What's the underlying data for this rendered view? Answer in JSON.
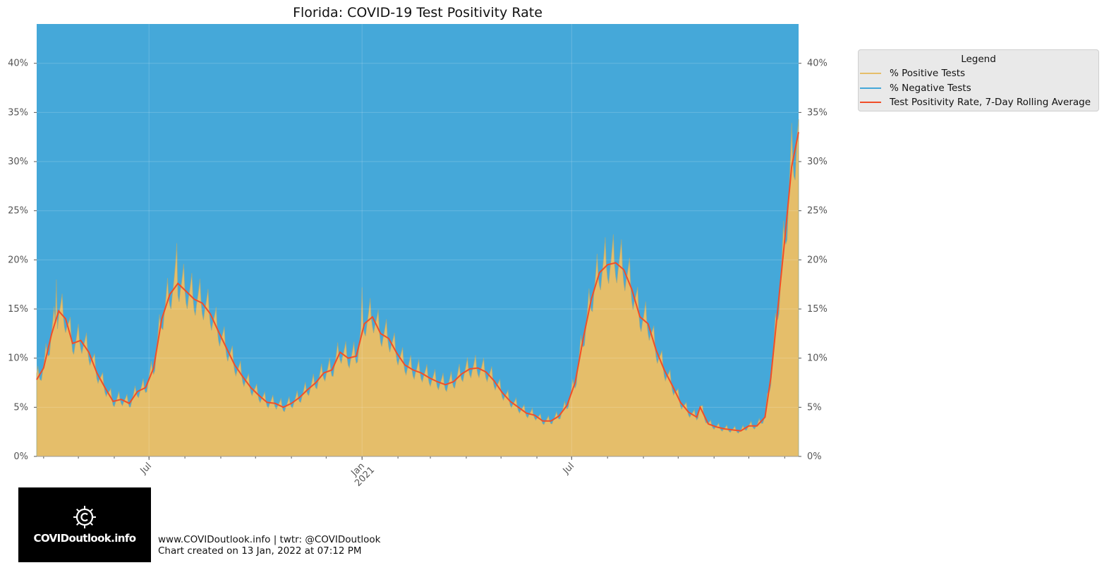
{
  "chart_data": {
    "type": "area",
    "title": "Florida: COVID-19 Test Positivity Rate",
    "xlabel": "",
    "ylabel": "",
    "x_ticks": [
      {
        "date": "2020-07-01",
        "label": "Jul"
      },
      {
        "date": "2021-01-01",
        "label": "Jan\n2021"
      },
      {
        "date": "2021-07-01",
        "label": "Jul"
      }
    ],
    "x_range": [
      "2020-03-26",
      "2022-01-13"
    ],
    "y_ticks": [
      "0%",
      "5%",
      "10%",
      "15%",
      "20%",
      "25%",
      "30%",
      "35%",
      "40%"
    ],
    "ylim": [
      0,
      44
    ],
    "grid": true,
    "legend_title": "Legend",
    "legend_position": "outside-right",
    "series": [
      {
        "name": "% Positive Tests",
        "color": "#E5BE6A"
      },
      {
        "name": "% Negative Tests",
        "color": "#45A8D9"
      },
      {
        "name": "Test Positivity Rate, 7-Day Rolling Average",
        "color": "#F14E28",
        "points": [
          [
            "2020-03-26",
            7.8
          ],
          [
            "2020-04-01",
            9.0
          ],
          [
            "2020-04-08",
            12.5
          ],
          [
            "2020-04-14",
            14.8
          ],
          [
            "2020-04-20",
            14.0
          ],
          [
            "2020-04-26",
            11.5
          ],
          [
            "2020-05-03",
            11.8
          ],
          [
            "2020-05-10",
            10.6
          ],
          [
            "2020-05-17",
            8.5
          ],
          [
            "2020-05-24",
            7.0
          ],
          [
            "2020-05-31",
            5.6
          ],
          [
            "2020-06-07",
            5.8
          ],
          [
            "2020-06-14",
            5.4
          ],
          [
            "2020-06-21",
            6.6
          ],
          [
            "2020-06-28",
            7.0
          ],
          [
            "2020-07-05",
            9.0
          ],
          [
            "2020-07-12",
            14.0
          ],
          [
            "2020-07-19",
            16.5
          ],
          [
            "2020-07-26",
            17.6
          ],
          [
            "2020-08-02",
            16.8
          ],
          [
            "2020-08-09",
            16.0
          ],
          [
            "2020-08-16",
            15.6
          ],
          [
            "2020-08-23",
            14.5
          ],
          [
            "2020-08-30",
            12.7
          ],
          [
            "2020-09-06",
            11.0
          ],
          [
            "2020-09-13",
            9.3
          ],
          [
            "2020-09-20",
            8.1
          ],
          [
            "2020-09-27",
            7.0
          ],
          [
            "2020-10-04",
            6.2
          ],
          [
            "2020-10-11",
            5.5
          ],
          [
            "2020-10-18",
            5.4
          ],
          [
            "2020-10-25",
            5.0
          ],
          [
            "2020-11-01",
            5.4
          ],
          [
            "2020-11-08",
            6.0
          ],
          [
            "2020-11-15",
            6.8
          ],
          [
            "2020-11-22",
            7.5
          ],
          [
            "2020-11-29",
            8.5
          ],
          [
            "2020-12-06",
            8.8
          ],
          [
            "2020-12-13",
            10.6
          ],
          [
            "2020-12-20",
            10.0
          ],
          [
            "2020-12-27",
            10.2
          ],
          [
            "2021-01-03",
            13.5
          ],
          [
            "2021-01-10",
            14.2
          ],
          [
            "2021-01-17",
            12.5
          ],
          [
            "2021-01-24",
            12.0
          ],
          [
            "2021-01-31",
            10.5
          ],
          [
            "2021-02-07",
            9.3
          ],
          [
            "2021-02-14",
            8.8
          ],
          [
            "2021-02-21",
            8.5
          ],
          [
            "2021-02-28",
            8.0
          ],
          [
            "2021-03-07",
            7.6
          ],
          [
            "2021-03-14",
            7.3
          ],
          [
            "2021-03-21",
            7.6
          ],
          [
            "2021-03-28",
            8.4
          ],
          [
            "2021-04-04",
            8.9
          ],
          [
            "2021-04-11",
            9.0
          ],
          [
            "2021-04-18",
            8.6
          ],
          [
            "2021-04-25",
            7.7
          ],
          [
            "2021-05-02",
            6.5
          ],
          [
            "2021-05-09",
            5.6
          ],
          [
            "2021-05-16",
            5.0
          ],
          [
            "2021-05-23",
            4.4
          ],
          [
            "2021-05-30",
            4.2
          ],
          [
            "2021-06-06",
            3.6
          ],
          [
            "2021-06-13",
            3.6
          ],
          [
            "2021-06-20",
            4.1
          ],
          [
            "2021-06-27",
            5.2
          ],
          [
            "2021-07-04",
            7.5
          ],
          [
            "2021-07-11",
            12.0
          ],
          [
            "2021-07-18",
            16.0
          ],
          [
            "2021-07-25",
            18.7
          ],
          [
            "2021-08-01",
            19.5
          ],
          [
            "2021-08-08",
            19.7
          ],
          [
            "2021-08-15",
            19.0
          ],
          [
            "2021-08-22",
            17.0
          ],
          [
            "2021-08-29",
            14.2
          ],
          [
            "2021-09-05",
            13.5
          ],
          [
            "2021-09-12",
            10.8
          ],
          [
            "2021-09-19",
            8.8
          ],
          [
            "2021-09-26",
            7.2
          ],
          [
            "2021-10-03",
            5.5
          ],
          [
            "2021-10-10",
            4.5
          ],
          [
            "2021-10-17",
            4.0
          ],
          [
            "2021-10-20",
            5.0
          ],
          [
            "2021-10-27",
            3.3
          ],
          [
            "2021-11-03",
            3.0
          ],
          [
            "2021-11-10",
            2.8
          ],
          [
            "2021-11-17",
            2.7
          ],
          [
            "2021-11-24",
            2.6
          ],
          [
            "2021-12-01",
            3.1
          ],
          [
            "2021-12-08",
            3.1
          ],
          [
            "2021-12-15",
            4.0
          ],
          [
            "2021-12-20",
            8.0
          ],
          [
            "2021-12-26",
            15.0
          ],
          [
            "2022-01-01",
            22.0
          ],
          [
            "2022-01-07",
            29.5
          ],
          [
            "2022-01-13",
            33.0
          ]
        ]
      }
    ],
    "daily_positive_peaks": [
      [
        "2020-04-12",
        18.0
      ],
      [
        "2020-07-25",
        21.7
      ],
      [
        "2021-01-01",
        17.2
      ],
      [
        "2021-07-30",
        22.3
      ],
      [
        "2022-01-13",
        34.3
      ]
    ]
  },
  "footer": {
    "line1": "www.COVIDoutlook.info | twtr: @COVIDoutlook",
    "line2": "Chart created on 13 Jan, 2022 at 07:12 PM"
  },
  "logo": {
    "text": "COVIDoutlook.info",
    "icon": "covid-virus-icon"
  }
}
